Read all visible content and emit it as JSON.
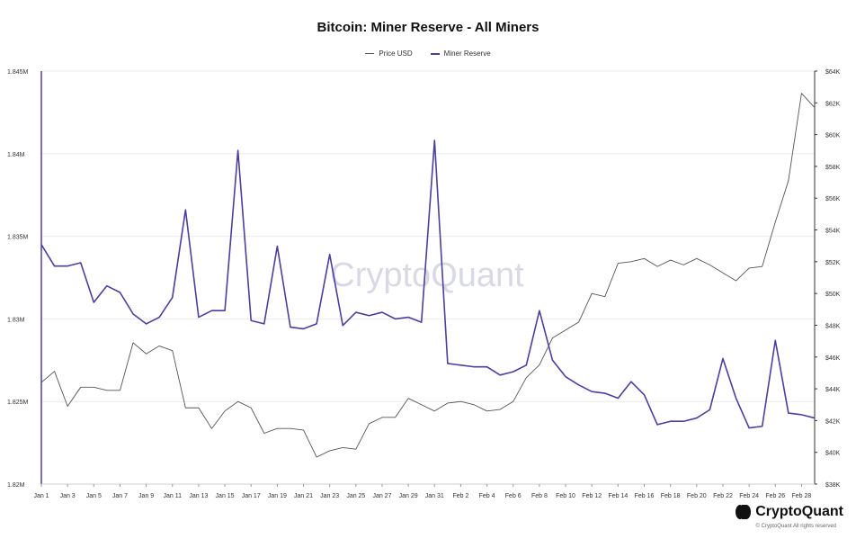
{
  "chart_data": {
    "type": "line",
    "title": "Bitcoin: Miner Reserve - All Miners",
    "legend": [
      "Price USD",
      "Miner Reserve"
    ],
    "x_ticks": [
      "Jan 1",
      "Jan 3",
      "Jan 5",
      "Jan 7",
      "Jan 9",
      "Jan 11",
      "Jan 13",
      "Jan 15",
      "Jan 17",
      "Jan 19",
      "Jan 21",
      "Jan 23",
      "Jan 25",
      "Jan 27",
      "Jan 29",
      "Jan 31",
      "Feb 2",
      "Feb 4",
      "Feb 6",
      "Feb 8",
      "Feb 10",
      "Feb 12",
      "Feb 14",
      "Feb 16",
      "Feb 18",
      "Feb 20",
      "Feb 22",
      "Feb 24",
      "Feb 26",
      "Feb 28"
    ],
    "y_left": {
      "ticks": [
        "1.845M",
        "1.84M",
        "1.835M",
        "1.83M",
        "1.825M",
        "1.82M"
      ],
      "range": [
        1820000,
        1845000
      ]
    },
    "y_right": {
      "ticks": [
        "$64K",
        "$62K",
        "$60K",
        "$58K",
        "$56K",
        "$54K",
        "$52K",
        "$50K",
        "$48K",
        "$46K",
        "$44K",
        "$42K",
        "$40K",
        "$38K"
      ],
      "range": [
        38000,
        64000
      ]
    },
    "series": [
      {
        "name": "Price USD",
        "axis": "right",
        "color": "#555555",
        "values": [
          44400,
          45100,
          42900,
          44100,
          44100,
          43900,
          43900,
          46900,
          46200,
          46700,
          46400,
          42800,
          42800,
          41500,
          42600,
          43200,
          42800,
          41200,
          41500,
          41500,
          41400,
          39700,
          40100,
          40300,
          40200,
          41800,
          42200,
          42200,
          43400,
          43000,
          42600,
          43100,
          43200,
          43000,
          42600,
          42700,
          43200,
          44700,
          45500,
          47200,
          47700,
          48200,
          50000,
          49800,
          51900,
          52000,
          52200,
          51700,
          52100,
          51800,
          52200,
          51800,
          51300,
          50800,
          51600,
          51700,
          54500,
          57100,
          62600,
          61700
        ]
      },
      {
        "name": "Miner Reserve",
        "axis": "left",
        "color": "#4b3f9e",
        "values": [
          1834500,
          1833200,
          1833200,
          1833400,
          1831000,
          1832000,
          1831600,
          1830300,
          1829700,
          1830100,
          1831300,
          1836600,
          1830100,
          1830500,
          1830500,
          1840200,
          1829900,
          1829700,
          1834400,
          1829500,
          1829400,
          1829700,
          1833900,
          1829600,
          1830400,
          1830200,
          1830400,
          1830000,
          1830100,
          1829800,
          1840800,
          1827300,
          1827200,
          1827100,
          1827100,
          1826600,
          1826800,
          1827200,
          1830500,
          1827500,
          1826500,
          1826000,
          1825600,
          1825500,
          1825200,
          1826200,
          1825400,
          1823600,
          1823800,
          1823800,
          1824000,
          1824500,
          1827600,
          1825200,
          1823400,
          1823500,
          1828700,
          1824300,
          1824200,
          1824000
        ]
      }
    ]
  },
  "watermark": "CryptoQuant",
  "brand": {
    "name": "CryptoQuant",
    "credit": "© CryptoQuant All rights reserved"
  }
}
